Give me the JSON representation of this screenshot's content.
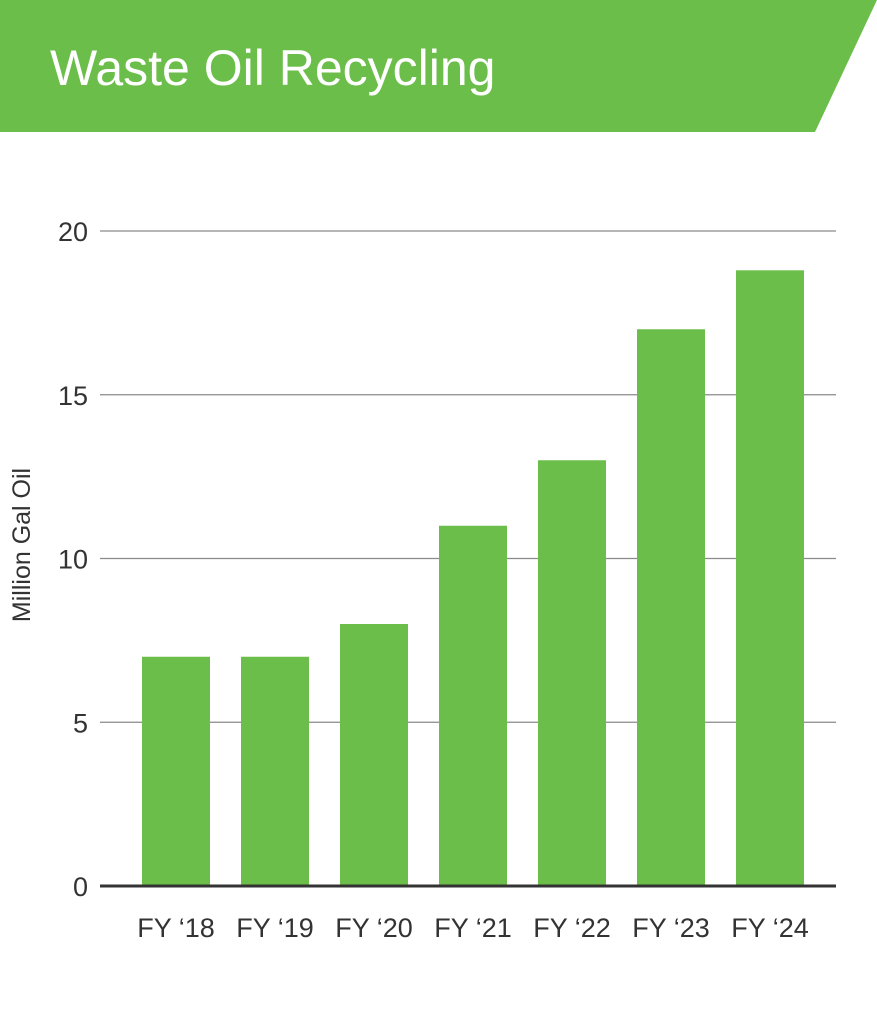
{
  "chart_data": {
    "type": "bar",
    "title": "Waste Oil Recycling",
    "ylabel": "Million Gal Oil",
    "xlabel": "",
    "categories": [
      "FY ‘18",
      "FY ‘19",
      "FY ‘20",
      "FY ‘21",
      "FY ‘22",
      "FY ‘23",
      "FY ‘24"
    ],
    "values": [
      7,
      7,
      8,
      11,
      13,
      17,
      18.8
    ],
    "ylim": [
      0,
      20
    ],
    "yticks": [
      0,
      5,
      10,
      15,
      20
    ],
    "grid": true,
    "colors": {
      "bar": "#6cbe4a",
      "banner": "#6cbe4a",
      "grid": "#8a8a8a",
      "axis": "#333333"
    }
  }
}
